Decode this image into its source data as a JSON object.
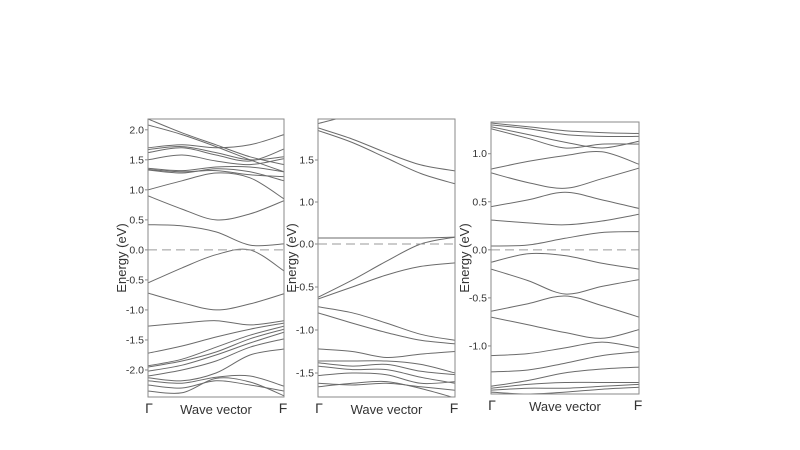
{
  "chart_data": [
    {
      "type": "line",
      "title": "",
      "xlabel": "Wave vector",
      "ylabel": "Energy (eV)",
      "x_tick_labels": [
        "Γ",
        "F"
      ],
      "ylim": [
        -2.45,
        2.18
      ],
      "y_ticks": [
        {
          "value": 2.0,
          "label": "2.0"
        },
        {
          "value": 1.5,
          "label": "1.5"
        },
        {
          "value": 1.0,
          "label": "1.0"
        },
        {
          "value": 0.5,
          "label": "0.5"
        },
        {
          "value": 0.0,
          "label": "0.0"
        },
        {
          "value": -0.5,
          "label": "-0.5"
        },
        {
          "value": -1.0,
          "label": "-1.0"
        },
        {
          "value": -1.5,
          "label": "-1.5"
        },
        {
          "value": -2.0,
          "label": "-2.0"
        }
      ],
      "fermi_level": 0.0,
      "grid": false,
      "k_points": [
        0,
        0.25,
        0.5,
        0.75,
        1.0
      ],
      "bands": [
        [
          2.18,
          1.95,
          1.75,
          1.55,
          1.42
        ],
        [
          2.08,
          1.92,
          1.72,
          1.5,
          1.3
        ],
        [
          1.7,
          1.75,
          1.7,
          1.75,
          1.92
        ],
        [
          1.67,
          1.72,
          1.62,
          1.5,
          1.55
        ],
        [
          1.62,
          1.7,
          1.58,
          1.48,
          1.68
        ],
        [
          1.5,
          1.58,
          1.48,
          1.42,
          1.52
        ],
        [
          1.36,
          1.32,
          1.38,
          1.38,
          1.3
        ],
        [
          1.34,
          1.3,
          1.32,
          1.25,
          1.22
        ],
        [
          1.33,
          1.28,
          1.35,
          1.3,
          1.15
        ],
        [
          1.0,
          1.15,
          1.28,
          1.2,
          0.85
        ],
        [
          0.9,
          0.68,
          0.5,
          0.6,
          0.82
        ],
        [
          0.42,
          0.4,
          0.3,
          0.08,
          0.1
        ],
        [
          -0.55,
          -0.3,
          -0.08,
          0.0,
          -0.35
        ],
        [
          -0.72,
          -0.88,
          -1.0,
          -0.9,
          -0.73
        ],
        [
          -1.27,
          -1.22,
          -1.18,
          -1.25,
          -1.18
        ],
        [
          -1.72,
          -1.6,
          -1.45,
          -1.32,
          -1.22
        ],
        [
          -1.93,
          -1.82,
          -1.62,
          -1.42,
          -1.27
        ],
        [
          -1.95,
          -1.85,
          -1.7,
          -1.48,
          -1.32
        ],
        [
          -2.02,
          -1.92,
          -1.75,
          -1.55,
          -1.37
        ],
        [
          -2.1,
          -2.0,
          -1.85,
          -1.62,
          -1.48
        ],
        [
          -2.13,
          -2.18,
          -2.05,
          -1.75,
          -1.65
        ],
        [
          -2.18,
          -2.22,
          -2.12,
          -2.1,
          -2.27
        ],
        [
          -2.25,
          -2.3,
          -2.18,
          -2.25,
          -2.35
        ],
        [
          -2.35,
          -2.38,
          -2.14,
          -2.2,
          -2.43
        ]
      ]
    },
    {
      "type": "line",
      "title": "",
      "xlabel": "Wave vector",
      "ylabel": "Energy (eV)",
      "x_tick_labels": [
        "Γ",
        "F"
      ],
      "ylim": [
        -1.8,
        1.98
      ],
      "y_ticks": [
        {
          "value": 1.5,
          "label": "1.5"
        },
        {
          "value": 1.0,
          "label": "1.0"
        },
        {
          "value": 0.0,
          "label": "0.0"
        },
        {
          "value": -0.5,
          "label": "-0.5"
        },
        {
          "value": -1.0,
          "label": "-1.0"
        },
        {
          "value": -1.5,
          "label": "-1.5"
        }
      ],
      "y_tick_positions_note": "1.0 label sits at 0.5 eV grid position as drawn",
      "y_tick_plot_values": [
        1.5,
        1.0,
        0.0,
        -0.5,
        -1.0,
        -1.5
      ],
      "fermi_level": 0.0,
      "grid": false,
      "k_points": [
        0,
        0.25,
        0.5,
        0.75,
        1.0
      ],
      "bands": [
        [
          1.88,
          1.82,
          1.8,
          1.88,
          1.95
        ],
        [
          1.82,
          1.8,
          1.82,
          1.9,
          1.96
        ],
        [
          1.8,
          1.78,
          1.84,
          1.92,
          1.94
        ],
        [
          1.76,
          1.8,
          1.86,
          1.88,
          1.9
        ],
        [
          1.74,
          1.76,
          1.8,
          1.84,
          1.86
        ],
        [
          1.7,
          1.74,
          1.76,
          1.78,
          1.8
        ],
        [
          1.45,
          1.6,
          1.72,
          1.78,
          1.78
        ],
        [
          1.4,
          1.5,
          1.58,
          1.66,
          1.72
        ],
        [
          1.35,
          1.22,
          1.06,
          0.92,
          0.85
        ],
        [
          1.32,
          1.18,
          1.0,
          0.82,
          0.7
        ],
        [
          0.07,
          0.07,
          0.07,
          0.07,
          0.08
        ],
        [
          -0.62,
          -0.42,
          -0.2,
          0.0,
          0.08
        ],
        [
          -0.64,
          -0.5,
          -0.36,
          -0.26,
          -0.22
        ],
        [
          -0.73,
          -0.8,
          -0.92,
          -1.05,
          -1.12
        ],
        [
          -0.8,
          -0.92,
          -1.03,
          -1.12,
          -1.16
        ],
        [
          -1.22,
          -1.25,
          -1.32,
          -1.28,
          -1.25
        ],
        [
          -1.36,
          -1.36,
          -1.36,
          -1.4,
          -1.5
        ],
        [
          -1.38,
          -1.42,
          -1.4,
          -1.48,
          -1.52
        ],
        [
          -1.42,
          -1.46,
          -1.46,
          -1.55,
          -1.62
        ],
        [
          -1.53,
          -1.5,
          -1.52,
          -1.62,
          -1.6
        ],
        [
          -1.62,
          -1.64,
          -1.62,
          -1.66,
          -1.7
        ],
        [
          -1.66,
          -1.62,
          -1.6,
          -1.68,
          -1.79
        ]
      ]
    },
    {
      "type": "line",
      "title": "",
      "xlabel": "Wave vector",
      "ylabel": "Energy (eV)",
      "x_tick_labels": [
        "Γ",
        "F"
      ],
      "ylim": [
        -1.5,
        1.33
      ],
      "y_ticks": [
        {
          "value": 1.0,
          "label": "1.0"
        },
        {
          "value": 0.5,
          "label": "0.5"
        },
        {
          "value": 0.0,
          "label": "0.0"
        },
        {
          "value": -0.5,
          "label": "-0.5"
        },
        {
          "value": -1.0,
          "label": "-1.0"
        }
      ],
      "fermi_level": 0.0,
      "grid": false,
      "k_points": [
        0,
        0.25,
        0.5,
        0.75,
        1.0
      ],
      "bands": [
        [
          1.32,
          1.28,
          1.24,
          1.22,
          1.21
        ],
        [
          1.3,
          1.26,
          1.2,
          1.18,
          1.18
        ],
        [
          1.28,
          1.2,
          1.12,
          1.06,
          1.13
        ],
        [
          1.26,
          1.16,
          1.06,
          1.1,
          1.1
        ],
        [
          0.84,
          0.92,
          0.98,
          1.02,
          0.89
        ],
        [
          0.8,
          0.7,
          0.64,
          0.74,
          0.85
        ],
        [
          0.45,
          0.52,
          0.6,
          0.52,
          0.43
        ],
        [
          0.31,
          0.28,
          0.26,
          0.3,
          0.37
        ],
        [
          0.04,
          0.05,
          0.12,
          0.18,
          0.19
        ],
        [
          -0.13,
          -0.04,
          -0.06,
          -0.14,
          -0.2
        ],
        [
          -0.2,
          -0.32,
          -0.46,
          -0.38,
          -0.31
        ],
        [
          -0.64,
          -0.56,
          -0.48,
          -0.58,
          -0.7
        ],
        [
          -0.7,
          -0.78,
          -0.86,
          -0.92,
          -0.83
        ],
        [
          -1.1,
          -1.08,
          -1.02,
          -0.96,
          -1.02
        ],
        [
          -1.27,
          -1.25,
          -1.18,
          -1.1,
          -1.06
        ],
        [
          -1.42,
          -1.36,
          -1.28,
          -1.24,
          -1.22
        ],
        [
          -1.44,
          -1.4,
          -1.38,
          -1.38,
          -1.38
        ],
        [
          -1.46,
          -1.44,
          -1.44,
          -1.42,
          -1.4
        ],
        [
          -1.48,
          -1.5,
          -1.48,
          -1.45,
          -1.43
        ]
      ]
    }
  ]
}
